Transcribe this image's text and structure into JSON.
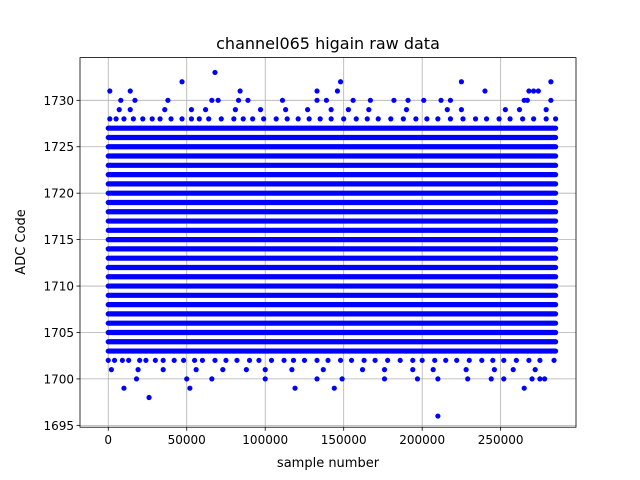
{
  "chart_data": {
    "type": "scatter",
    "title": "channel065 higain raw data",
    "xlabel": "sample number",
    "ylabel": "ADC Code",
    "xlim": [
      -18000,
      298000
    ],
    "ylim": [
      1694.8,
      1734.6
    ],
    "x_ticks": [
      0,
      50000,
      100000,
      150000,
      200000,
      250000
    ],
    "y_ticks": [
      1695,
      1700,
      1705,
      1710,
      1715,
      1720,
      1725,
      1730
    ],
    "grid": true,
    "marker_color": "#0000ff",
    "series": [
      {
        "dense_x_range": [
          0,
          285000
        ],
        "dense_levels": [
          1703,
          1704,
          1705,
          1706,
          1707,
          1708,
          1709,
          1710,
          1711,
          1712,
          1713,
          1714,
          1715,
          1716,
          1717,
          1718,
          1719,
          1720,
          1721,
          1722,
          1723,
          1724,
          1725,
          1726,
          1727
        ],
        "sparse_levels": [
          {
            "y": 1702,
            "x": [
              0,
              4000,
              9000,
              13000,
              20000,
              24000,
              30000,
              35000,
              42000,
              48000,
              55000,
              60000,
              68000,
              75000,
              82000,
              90000,
              96000,
              104000,
              112000,
              118000,
              125000,
              133000,
              140000,
              148000,
              155000,
              163000,
              170000,
              178000,
              186000,
              194000,
              200000,
              208000,
              215000,
              222000,
              230000,
              238000,
              245000,
              252000,
              260000,
              268000,
              275000,
              284000
            ]
          },
          {
            "y": 1701,
            "x": [
              2000,
              19000,
              35000,
              56000,
              73000,
              88000,
              100000,
              117000,
              137000,
              162000,
              176000,
              194000,
              207000,
              228000,
              246000,
              258000,
              272000
            ]
          },
          {
            "y": 1700,
            "x": [
              18000,
              50000,
              66000,
              100000,
              133000,
              149000,
              176000,
              197000,
              210000,
              229000,
              244000,
              252000,
              270000,
              275000,
              278000
            ]
          },
          {
            "y": 1699,
            "x": [
              10000,
              52000,
              119000,
              144000,
              265000
            ]
          },
          {
            "y": 1698,
            "x": [
              26000
            ]
          },
          {
            "y": 1696,
            "x": [
              210000
            ]
          },
          {
            "y": 1728,
            "x": [
              1000,
              5000,
              10000,
              16000,
              22000,
              28000,
              33000,
              40000,
              47000,
              53000,
              58000,
              64000,
              72000,
              80000,
              86000,
              92000,
              99000,
              107000,
              114000,
              121000,
              128000,
              135000,
              142000,
              150000,
              158000,
              165000,
              172000,
              180000,
              188000,
              196000,
              203000,
              210000,
              218000,
              226000,
              234000,
              241000,
              249000,
              256000,
              264000,
              271000,
              279000,
              285000
            ]
          },
          {
            "y": 1729,
            "x": [
              7000,
              14000,
              36000,
              53000,
              62000,
              81000,
              97000,
              113000,
              127000,
              142000,
              153000,
              166000,
              190000,
              216000,
              225000,
              253000,
              262000,
              279000
            ]
          },
          {
            "y": 1730,
            "x": [
              8000,
              17000,
              38000,
              66000,
              70000,
              83000,
              89000,
              111000,
              133000,
              139000,
              156000,
              167000,
              182000,
              191000,
              201000,
              212000,
              218000,
              265000,
              267000,
              282000
            ]
          },
          {
            "y": 1731,
            "x": [
              1000,
              14000,
              84000,
              133000,
              146000,
              240000,
              268000,
              271000,
              274000
            ]
          },
          {
            "y": 1732,
            "x": [
              47000,
              148000,
              225000,
              282000
            ]
          },
          {
            "y": 1733,
            "x": [
              68000
            ]
          }
        ]
      }
    ]
  }
}
